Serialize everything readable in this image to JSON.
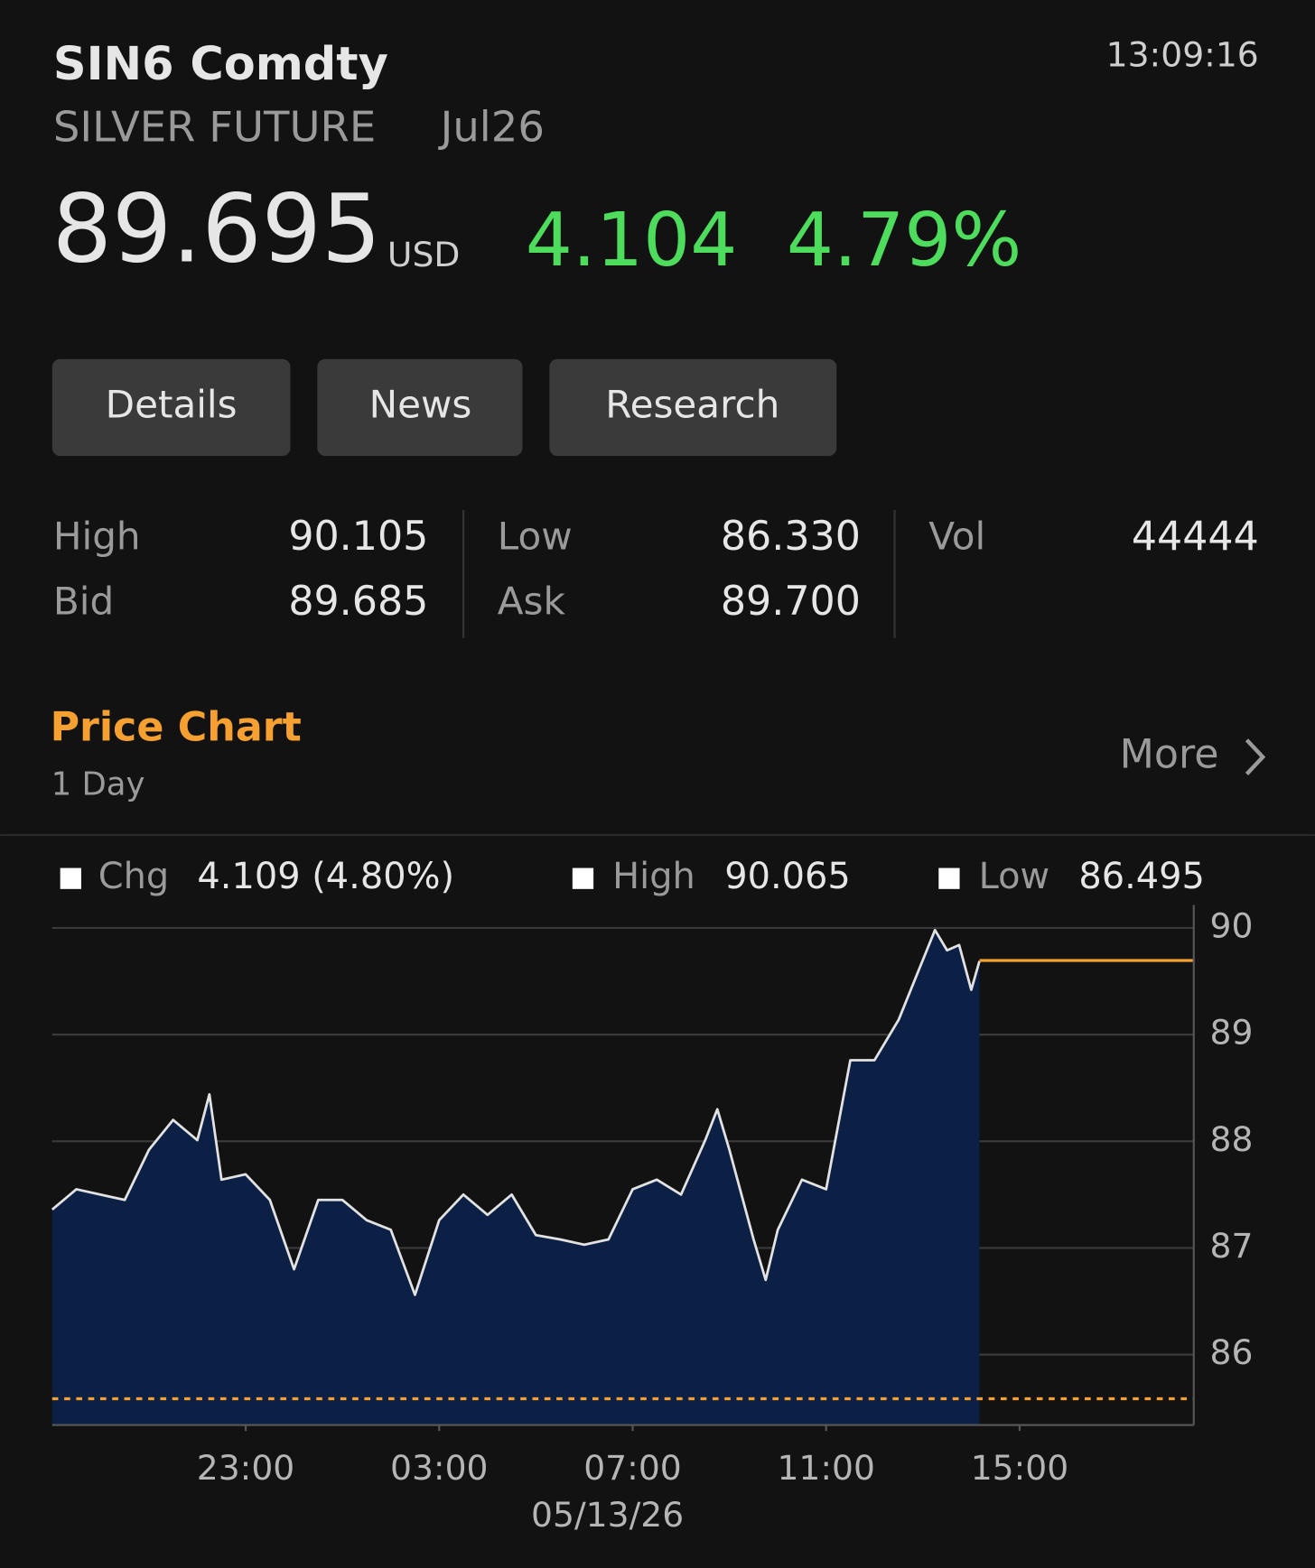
{
  "header": {
    "ticker": "SIN6 Comdty",
    "name": "SILVER FUTURE",
    "contract": "Jul26",
    "time": "13:09:16",
    "price": "89.695",
    "currency": "USD",
    "change": "4.104",
    "change_pct": "4.79%"
  },
  "tabs": [
    "Details",
    "News",
    "Research"
  ],
  "stats": [
    {
      "label": "High",
      "value": "90.105"
    },
    {
      "label": "Low",
      "value": "86.330"
    },
    {
      "label": "Vol",
      "value": "44444"
    },
    {
      "label": "Bid",
      "value": "89.685"
    },
    {
      "label": "Ask",
      "value": "89.700"
    }
  ],
  "section": {
    "title": "Price Chart",
    "period": "1 Day",
    "more": "More"
  },
  "chart_data": {
    "type": "area",
    "summary": [
      {
        "label": "Chg",
        "value": "4.109 (4.80%)"
      },
      {
        "label": "High",
        "value": "90.065"
      },
      {
        "label": "Low",
        "value": "86.495"
      }
    ],
    "x": [
      19,
      19.5,
      20,
      20.5,
      21,
      21.5,
      22,
      22.25,
      22.5,
      23,
      23.5,
      24,
      24.5,
      25,
      25.5,
      26,
      26.5,
      27,
      27.5,
      28,
      28.5,
      29,
      29.5,
      30,
      30.5,
      31,
      31.5,
      32,
      32.5,
      32.75,
      33,
      33.5,
      33.75,
      34,
      34.5,
      35,
      35.5,
      36,
      36.5,
      37,
      37.25,
      37.5,
      37.75,
      38,
      38.17
    ],
    "values": [
      87.36,
      87.55,
      87.5,
      87.45,
      87.92,
      88.2,
      88.01,
      88.44,
      87.64,
      87.69,
      87.45,
      86.8,
      87.45,
      87.45,
      87.26,
      87.17,
      86.56,
      87.26,
      87.5,
      87.31,
      87.5,
      87.12,
      87.08,
      87.03,
      87.08,
      87.55,
      87.64,
      87.5,
      88.01,
      88.3,
      87.92,
      87.08,
      86.7,
      87.17,
      87.64,
      87.55,
      88.76,
      88.76,
      89.14,
      89.7,
      89.98,
      89.79,
      89.84,
      89.42,
      89.69
    ],
    "color": "#0c1f45",
    "line_color": "#e2e2e2",
    "xlim": [
      19,
      42.6
    ],
    "xticks": [
      {
        "value": 23,
        "label": "23:00"
      },
      {
        "value": 27,
        "label": "03:00"
      },
      {
        "value": 31,
        "label": "07:00"
      },
      {
        "value": 35,
        "label": "11:00"
      },
      {
        "value": 39,
        "label": "15:00"
      }
    ],
    "x_label": "05/13/26",
    "ylim": [
      85.34,
      90.215
    ],
    "yticks": [
      86,
      87,
      88,
      89,
      90
    ],
    "grid": true,
    "last_price": 89.695,
    "last_color": "#f5a030",
    "prev_close": 85.586,
    "prev_close_color": "#f5a030"
  }
}
